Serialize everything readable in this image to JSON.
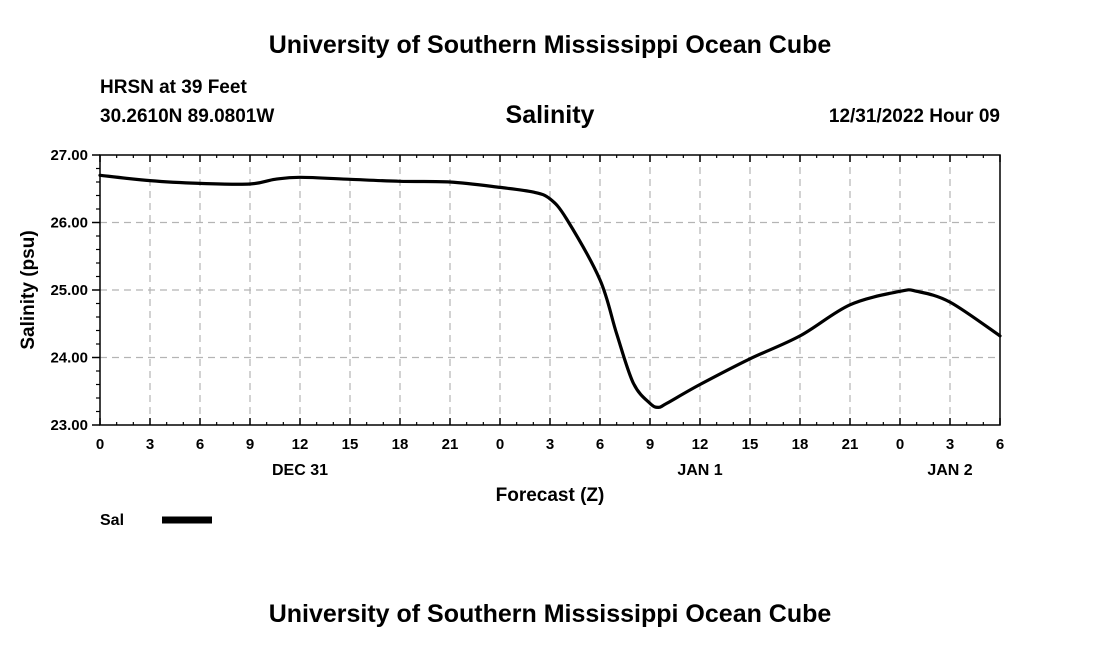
{
  "header": {
    "title": "University of Southern Mississippi Ocean Cube",
    "station_name": "HRSN at 39 Feet",
    "station_coords": "30.2610N  89.0801W",
    "issue_time": "12/31/2022 Hour 09"
  },
  "footer": {
    "title": "University of Southern Mississippi Ocean Cube"
  },
  "chart_data": {
    "type": "line",
    "title": "Salinity",
    "xlabel": "Forecast (Z)",
    "ylabel": "Salinity (psu)",
    "xlim": [
      0,
      54
    ],
    "ylim": [
      23.0,
      27.0
    ],
    "grid": true,
    "x_ticks": [
      0,
      3,
      6,
      9,
      12,
      15,
      18,
      21,
      24,
      27,
      30,
      33,
      36,
      39,
      42,
      45,
      48,
      51,
      54
    ],
    "x_tick_labels": [
      "0",
      "3",
      "6",
      "9",
      "12",
      "15",
      "18",
      "21",
      "0",
      "3",
      "6",
      "9",
      "12",
      "15",
      "18",
      "21",
      "0",
      "3",
      "6"
    ],
    "y_ticks": [
      23.0,
      24.0,
      25.0,
      26.0,
      27.0
    ],
    "y_tick_labels": [
      "23.00",
      "24.00",
      "25.00",
      "26.00",
      "27.00"
    ],
    "date_labels": [
      {
        "x": 12,
        "label": "DEC 31"
      },
      {
        "x": 36,
        "label": "JAN 1"
      },
      {
        "x": 51,
        "label": "JAN 2"
      }
    ],
    "legend": {
      "label": "Sal",
      "position": "bottom-left"
    },
    "series": [
      {
        "name": "Sal",
        "color": "#000000",
        "x": [
          0,
          3,
          6,
          9,
          10.5,
          12,
          15,
          18,
          21,
          24,
          26,
          27,
          28,
          30,
          31,
          32,
          33,
          33.5,
          34,
          36,
          39,
          42,
          45,
          48,
          49,
          51,
          54
        ],
        "y": [
          26.7,
          26.62,
          26.58,
          26.57,
          26.64,
          26.67,
          26.64,
          26.61,
          26.6,
          26.52,
          26.45,
          26.35,
          26.05,
          25.15,
          24.35,
          23.62,
          23.32,
          23.26,
          23.32,
          23.6,
          23.98,
          24.32,
          24.78,
          24.98,
          24.98,
          24.82,
          24.32
        ]
      }
    ]
  }
}
